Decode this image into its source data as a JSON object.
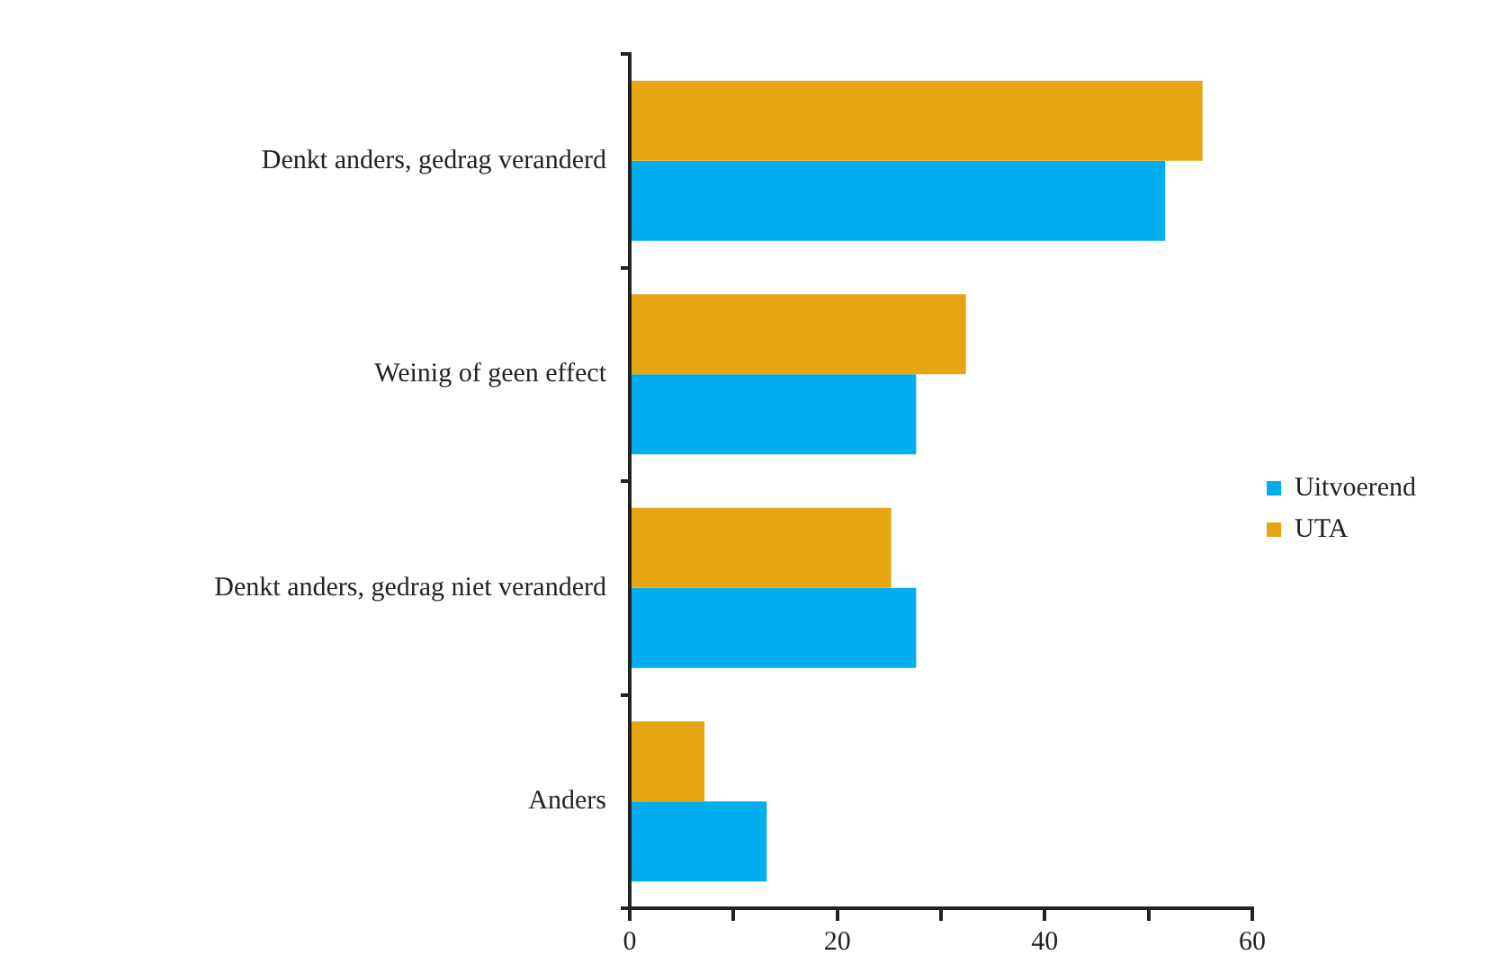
{
  "chart_data": {
    "type": "bar",
    "orientation": "horizontal",
    "categories": [
      "Denkt anders, gedrag veranderd",
      "Weinig of geen effect",
      "Denkt anders, gedrag niet veranderd",
      "Anders"
    ],
    "series": [
      {
        "name": "UTA",
        "color": "#e5a612",
        "values": [
          55.2,
          32.4,
          25.2,
          7.2
        ]
      },
      {
        "name": "Uitvoerend",
        "color": "#00aeef",
        "values": [
          51.6,
          27.6,
          27.6,
          13.2
        ]
      }
    ],
    "xlim": [
      0,
      60
    ],
    "xticks": [
      0,
      {
        "value": 10,
        "label": null
      },
      20,
      {
        "value": 30,
        "label": null
      },
      40,
      {
        "value": 50,
        "label": null
      },
      60
    ],
    "grid": false,
    "legend": "right"
  }
}
